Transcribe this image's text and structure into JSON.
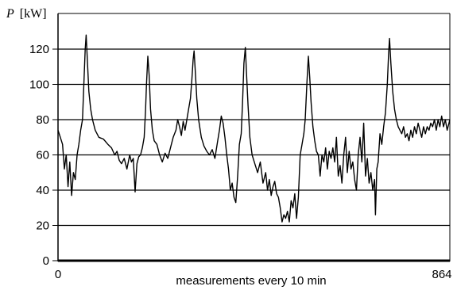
{
  "chart_data": {
    "type": "line",
    "xlabel": "measurements every 10 min",
    "ylabel_symbol": "P",
    "ylabel_unit": "[kW]",
    "xlim": [
      0,
      864
    ],
    "ylim": [
      0,
      140
    ],
    "x_ticks": [
      {
        "value": 0,
        "label": "0"
      },
      {
        "value": 864,
        "label": "864"
      }
    ],
    "y_ticks": [
      {
        "value": 0,
        "label": "0"
      },
      {
        "value": 20,
        "label": "20"
      },
      {
        "value": 40,
        "label": "40"
      },
      {
        "value": 60,
        "label": "60"
      },
      {
        "value": 80,
        "label": "80"
      },
      {
        "value": 100,
        "label": "100"
      },
      {
        "value": 120,
        "label": "120"
      }
    ],
    "grid": "horizontal",
    "series": [
      {
        "color": "#000000",
        "points": [
          [
            0,
            74
          ],
          [
            5,
            70
          ],
          [
            10,
            66
          ],
          [
            14,
            52
          ],
          [
            18,
            60
          ],
          [
            22,
            42
          ],
          [
            26,
            56
          ],
          [
            30,
            37
          ],
          [
            34,
            50
          ],
          [
            38,
            46
          ],
          [
            42,
            60
          ],
          [
            46,
            66
          ],
          [
            50,
            74
          ],
          [
            54,
            80
          ],
          [
            57,
            100
          ],
          [
            60,
            120
          ],
          [
            62,
            128
          ],
          [
            65,
            112
          ],
          [
            68,
            96
          ],
          [
            72,
            86
          ],
          [
            76,
            80
          ],
          [
            82,
            74
          ],
          [
            90,
            70
          ],
          [
            100,
            69
          ],
          [
            110,
            66
          ],
          [
            118,
            64
          ],
          [
            125,
            60
          ],
          [
            130,
            62
          ],
          [
            135,
            57
          ],
          [
            140,
            55
          ],
          [
            146,
            58
          ],
          [
            152,
            52
          ],
          [
            158,
            60
          ],
          [
            162,
            56
          ],
          [
            166,
            58
          ],
          [
            170,
            39
          ],
          [
            174,
            55
          ],
          [
            178,
            59
          ],
          [
            182,
            60
          ],
          [
            186,
            64
          ],
          [
            190,
            70
          ],
          [
            193,
            85
          ],
          [
            195,
            100
          ],
          [
            198,
            116
          ],
          [
            201,
            105
          ],
          [
            204,
            86
          ],
          [
            208,
            74
          ],
          [
            212,
            68
          ],
          [
            218,
            66
          ],
          [
            224,
            60
          ],
          [
            230,
            56
          ],
          [
            236,
            61
          ],
          [
            242,
            58
          ],
          [
            248,
            64
          ],
          [
            254,
            70
          ],
          [
            260,
            74
          ],
          [
            264,
            80
          ],
          [
            268,
            76
          ],
          [
            272,
            71
          ],
          [
            276,
            79
          ],
          [
            280,
            74
          ],
          [
            284,
            80
          ],
          [
            288,
            86
          ],
          [
            292,
            92
          ],
          [
            295,
            102
          ],
          [
            298,
            114
          ],
          [
            300,
            119
          ],
          [
            303,
            106
          ],
          [
            306,
            92
          ],
          [
            310,
            80
          ],
          [
            316,
            70
          ],
          [
            322,
            65
          ],
          [
            328,
            62
          ],
          [
            334,
            60
          ],
          [
            340,
            63
          ],
          [
            346,
            58
          ],
          [
            352,
            68
          ],
          [
            356,
            74
          ],
          [
            360,
            82
          ],
          [
            364,
            78
          ],
          [
            368,
            70
          ],
          [
            372,
            60
          ],
          [
            376,
            52
          ],
          [
            380,
            40
          ],
          [
            384,
            44
          ],
          [
            388,
            36
          ],
          [
            392,
            33
          ],
          [
            396,
            48
          ],
          [
            400,
            66
          ],
          [
            404,
            72
          ],
          [
            407,
            90
          ],
          [
            410,
            112
          ],
          [
            413,
            121
          ],
          [
            416,
            104
          ],
          [
            419,
            88
          ],
          [
            423,
            70
          ],
          [
            428,
            60
          ],
          [
            434,
            55
          ],
          [
            440,
            50
          ],
          [
            446,
            56
          ],
          [
            452,
            44
          ],
          [
            458,
            50
          ],
          [
            462,
            40
          ],
          [
            466,
            46
          ],
          [
            470,
            37
          ],
          [
            474,
            42
          ],
          [
            478,
            45
          ],
          [
            482,
            38
          ],
          [
            486,
            36
          ],
          [
            490,
            30
          ],
          [
            494,
            22
          ],
          [
            498,
            26
          ],
          [
            502,
            24
          ],
          [
            506,
            28
          ],
          [
            510,
            22
          ],
          [
            514,
            34
          ],
          [
            518,
            30
          ],
          [
            522,
            38
          ],
          [
            526,
            24
          ],
          [
            530,
            36
          ],
          [
            534,
            60
          ],
          [
            538,
            66
          ],
          [
            542,
            72
          ],
          [
            545,
            80
          ],
          [
            549,
            102
          ],
          [
            552,
            116
          ],
          [
            555,
            104
          ],
          [
            558,
            90
          ],
          [
            562,
            76
          ],
          [
            566,
            68
          ],
          [
            570,
            62
          ],
          [
            574,
            60
          ],
          [
            578,
            48
          ],
          [
            582,
            60
          ],
          [
            586,
            56
          ],
          [
            590,
            64
          ],
          [
            594,
            52
          ],
          [
            598,
            62
          ],
          [
            602,
            58
          ],
          [
            606,
            64
          ],
          [
            610,
            56
          ],
          [
            614,
            70
          ],
          [
            618,
            48
          ],
          [
            622,
            54
          ],
          [
            626,
            44
          ],
          [
            630,
            60
          ],
          [
            634,
            70
          ],
          [
            638,
            50
          ],
          [
            642,
            62
          ],
          [
            646,
            52
          ],
          [
            650,
            56
          ],
          [
            654,
            46
          ],
          [
            658,
            40
          ],
          [
            662,
            60
          ],
          [
            666,
            70
          ],
          [
            670,
            56
          ],
          [
            674,
            78
          ],
          [
            678,
            48
          ],
          [
            682,
            58
          ],
          [
            686,
            44
          ],
          [
            690,
            50
          ],
          [
            694,
            40
          ],
          [
            698,
            46
          ],
          [
            700,
            26
          ],
          [
            703,
            52
          ],
          [
            706,
            56
          ],
          [
            710,
            72
          ],
          [
            714,
            66
          ],
          [
            718,
            76
          ],
          [
            722,
            84
          ],
          [
            726,
            100
          ],
          [
            729,
            118
          ],
          [
            731,
            126
          ],
          [
            734,
            112
          ],
          [
            738,
            96
          ],
          [
            742,
            86
          ],
          [
            746,
            80
          ],
          [
            750,
            76
          ],
          [
            754,
            74
          ],
          [
            758,
            72
          ],
          [
            762,
            76
          ],
          [
            766,
            70
          ],
          [
            770,
            72
          ],
          [
            774,
            68
          ],
          [
            778,
            74
          ],
          [
            782,
            70
          ],
          [
            786,
            76
          ],
          [
            790,
            72
          ],
          [
            794,
            78
          ],
          [
            798,
            74
          ],
          [
            802,
            70
          ],
          [
            806,
            76
          ],
          [
            810,
            72
          ],
          [
            814,
            76
          ],
          [
            818,
            74
          ],
          [
            822,
            78
          ],
          [
            826,
            76
          ],
          [
            830,
            80
          ],
          [
            834,
            74
          ],
          [
            838,
            80
          ],
          [
            842,
            76
          ],
          [
            846,
            82
          ],
          [
            850,
            76
          ],
          [
            854,
            80
          ],
          [
            858,
            74
          ],
          [
            862,
            78
          ],
          [
            864,
            80
          ]
        ]
      }
    ]
  }
}
